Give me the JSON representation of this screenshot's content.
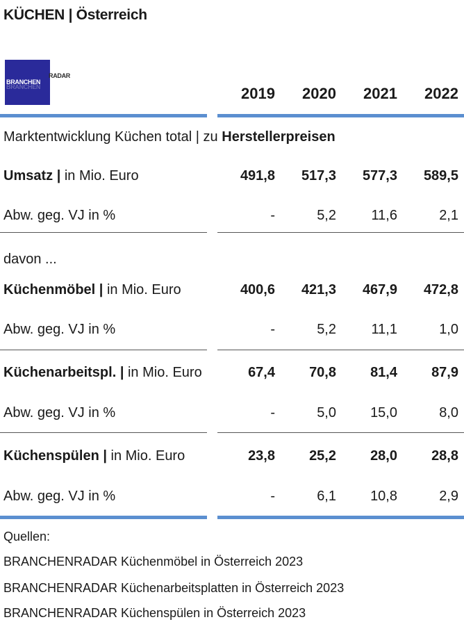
{
  "title": "KÜCHEN | Österreich",
  "logo": {
    "brand": "BRANCHEN",
    "tail": "RADAR"
  },
  "years": [
    "2019",
    "2020",
    "2021",
    "2022"
  ],
  "section_heading": {
    "prefix": "Marktentwicklung Küchen total | zu ",
    "bold": "Herstellerpreisen"
  },
  "davon": "davon ...",
  "rows": [
    {
      "label_bold": "Umsatz |",
      "label_rest": " in Mio. Euro",
      "values": [
        "491,8",
        "517,3",
        "577,3",
        "589,5"
      ]
    },
    {
      "label_bold": "",
      "label_rest": "Abw. geg. VJ in %",
      "values": [
        "-",
        "5,2",
        "11,6",
        "2,1"
      ]
    },
    {
      "label_bold": "Küchenmöbel |",
      "label_rest": " in Mio. Euro",
      "values": [
        "400,6",
        "421,3",
        "467,9",
        "472,8"
      ]
    },
    {
      "label_bold": "",
      "label_rest": "Abw. geg. VJ in %",
      "values": [
        "-",
        "5,2",
        "11,1",
        "1,0"
      ]
    },
    {
      "label_bold": "Küchenarbeitspl. |",
      "label_rest": " in Mio. Euro",
      "values": [
        "67,4",
        "70,8",
        "81,4",
        "87,9"
      ]
    },
    {
      "label_bold": "",
      "label_rest": "Abw. geg. VJ in %",
      "values": [
        "-",
        "5,0",
        "15,0",
        "8,0"
      ]
    },
    {
      "label_bold": "Küchenspülen |",
      "label_rest": " in Mio. Euro",
      "values": [
        "23,8",
        "25,2",
        "28,0",
        "28,8"
      ]
    },
    {
      "label_bold": "",
      "label_rest": "Abw. geg. VJ in %",
      "values": [
        "-",
        "6,1",
        "10,8",
        "2,9"
      ]
    }
  ],
  "sources": {
    "heading": "Quellen:",
    "items": [
      "BRANCHENRADAR Küchenmöbel in Österreich 2023",
      "BRANCHENRADAR Küchenarbeitsplatten in Österreich 2023",
      "BRANCHENRADAR Küchenspülen in Österreich 2023"
    ]
  }
}
